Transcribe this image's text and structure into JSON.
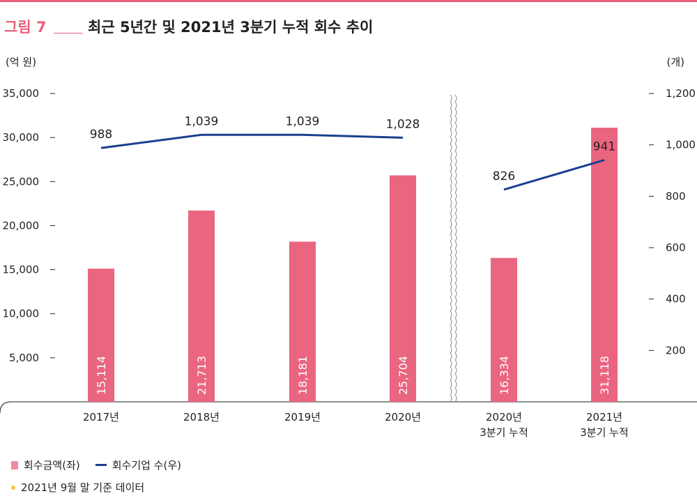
{
  "figure": {
    "label": "그림 7",
    "title": "최근 5년간 및 2021년 3분기 누적 회수 추이"
  },
  "units": {
    "left": "(억 원)",
    "right": "(개)"
  },
  "legend": {
    "bar_label": "회수금액(좌)",
    "line_label": "회수기업 수(우)"
  },
  "note": "2021년 9월 말 기준 데이터",
  "colors": {
    "bar": "#ea6580",
    "line": "#1b3f8f",
    "accent": "#e8607b"
  },
  "chart_data": {
    "type": "bar",
    "categories": [
      "2017년",
      "2018년",
      "2019년",
      "2020년",
      "2020년\n3분기 누적",
      "2021년\n3분기 누적"
    ],
    "category_lines": [
      [
        "2017년"
      ],
      [
        "2018년"
      ],
      [
        "2019년"
      ],
      [
        "2020년"
      ],
      [
        "2020년",
        "3분기 누적"
      ],
      [
        "2021년",
        "3분기 누적"
      ]
    ],
    "series": [
      {
        "name": "회수금액(좌)",
        "type": "bar",
        "axis": "left",
        "values": [
          15114,
          21713,
          18181,
          25704,
          16334,
          31118
        ],
        "labels": [
          "15,114",
          "21,713",
          "18,181",
          "25,704",
          "16,334",
          "31,118"
        ]
      },
      {
        "name": "회수기업 수(우)",
        "type": "line",
        "axis": "right",
        "values": [
          988,
          1039,
          1039,
          1028,
          826,
          941
        ],
        "labels": [
          "988",
          "1,039",
          "1,039",
          "1,028",
          "826",
          "941"
        ],
        "segments": [
          [
            0,
            1,
            2,
            3
          ],
          [
            4,
            5
          ]
        ]
      }
    ],
    "y_left": {
      "ylim": [
        0,
        35000
      ],
      "ticks": [
        5000,
        10000,
        15000,
        20000,
        25000,
        30000,
        35000
      ],
      "tick_labels": [
        "5,000",
        "10,000",
        "15,000",
        "20,000",
        "25,000",
        "30,000",
        "35,000"
      ]
    },
    "y_right": {
      "ylim": [
        0,
        1200
      ],
      "ticks": [
        200,
        400,
        600,
        800,
        1000,
        1200
      ],
      "tick_labels": [
        "200",
        "400",
        "600",
        "800",
        "1,000",
        "1,200"
      ]
    },
    "axis_break": "between 2020년 and 2020년 3분기 누적",
    "grid": false,
    "legend_position": "bottom-left"
  }
}
